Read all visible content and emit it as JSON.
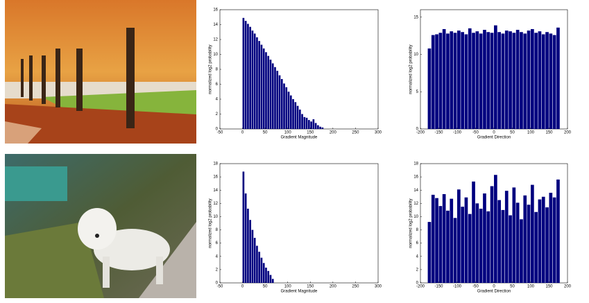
{
  "chart_data": [
    {
      "type": "histogram",
      "xlabel": "Gradient Magnitude",
      "ylabel": "normalized log2 probability",
      "color": "#00007f",
      "bins": [
        0,
        5,
        10,
        15,
        20,
        25,
        30,
        35,
        40,
        45,
        50,
        55,
        60,
        65,
        70,
        75,
        80,
        85,
        90,
        95,
        100,
        105,
        110,
        115,
        120,
        125,
        130,
        135,
        140,
        145,
        150,
        155,
        160,
        165,
        170,
        175,
        180
      ],
      "values": [
        14.9,
        14.5,
        14.1,
        13.7,
        13.2,
        12.8,
        12.3,
        11.8,
        11.3,
        10.8,
        10.3,
        9.8,
        9.3,
        8.8,
        8.3,
        7.8,
        7.2,
        6.7,
        6.1,
        5.6,
        5.0,
        4.5,
        4.0,
        3.6,
        3.1,
        2.6,
        2.0,
        1.6,
        1.5,
        1.2,
        1.0,
        1.3,
        0.8,
        0.5,
        0.3,
        0.2
      ],
      "xlim": [
        -50,
        300
      ],
      "xticks": [
        -50,
        0,
        50,
        100,
        150,
        200,
        250,
        300
      ],
      "ylim": [
        0,
        16
      ],
      "yticks": [
        0,
        2,
        4,
        6,
        8,
        10,
        12,
        14,
        16
      ]
    },
    {
      "type": "histogram",
      "xlabel": "Gradient Direction",
      "ylabel": "normalized log2 probability",
      "color": "#00007f",
      "bins": [
        -180,
        -170,
        -160,
        -150,
        -140,
        -130,
        -120,
        -110,
        -100,
        -90,
        -80,
        -70,
        -60,
        -50,
        -40,
        -30,
        -20,
        -10,
        0,
        10,
        20,
        30,
        40,
        50,
        60,
        70,
        80,
        90,
        100,
        110,
        120,
        130,
        140,
        150,
        160,
        170,
        180
      ],
      "values": [
        10.8,
        12.6,
        12.7,
        12.9,
        13.4,
        12.8,
        13.1,
        12.9,
        13.2,
        13.0,
        12.7,
        13.5,
        12.9,
        13.1,
        12.8,
        13.3,
        13.0,
        12.9,
        13.9,
        13.0,
        12.8,
        13.2,
        13.1,
        12.9,
        13.3,
        13.0,
        12.8,
        13.2,
        13.4,
        12.9,
        13.1,
        12.7,
        13.0,
        12.8,
        12.6,
        13.6
      ],
      "xlim": [
        -200,
        200
      ],
      "xticks": [
        -200,
        -150,
        -100,
        -50,
        0,
        50,
        100,
        150,
        200
      ],
      "ylim": [
        0,
        16
      ],
      "yticks": [
        0,
        5,
        10,
        15
      ]
    },
    {
      "type": "histogram",
      "xlabel": "Gradient Magnitude",
      "ylabel": "normalized log2 probability",
      "color": "#00007f",
      "bins": [
        0,
        5,
        10,
        15,
        20,
        25,
        30,
        35,
        40,
        45,
        50,
        55,
        60,
        65,
        70
      ],
      "values": [
        16.8,
        13.5,
        11.2,
        9.5,
        8.0,
        6.8,
        5.6,
        4.7,
        3.8,
        3.0,
        2.3,
        1.8,
        1.2,
        0.6
      ],
      "xlim": [
        -50,
        300
      ],
      "xticks": [
        -50,
        0,
        50,
        100,
        150,
        200,
        250,
        300
      ],
      "ylim": [
        0,
        18
      ],
      "yticks": [
        0,
        2,
        4,
        6,
        8,
        10,
        12,
        14,
        16,
        18
      ]
    },
    {
      "type": "histogram",
      "xlabel": "Gradient Direction",
      "ylabel": "normalized log2 probability",
      "color": "#00007f",
      "bins": [
        -180,
        -170,
        -160,
        -150,
        -140,
        -130,
        -120,
        -110,
        -100,
        -90,
        -80,
        -70,
        -60,
        -50,
        -40,
        -30,
        -20,
        -10,
        0,
        10,
        20,
        30,
        40,
        50,
        60,
        70,
        80,
        90,
        100,
        110,
        120,
        130,
        140,
        150,
        160,
        170,
        180
      ],
      "values": [
        9.2,
        13.3,
        12.8,
        11.6,
        13.4,
        10.9,
        12.7,
        9.8,
        14.1,
        11.5,
        12.9,
        10.4,
        15.3,
        12.0,
        11.2,
        13.5,
        10.8,
        14.6,
        16.3,
        12.5,
        11.0,
        13.9,
        10.2,
        14.4,
        12.1,
        9.6,
        13.2,
        11.8,
        14.8,
        10.7,
        12.6,
        13.0,
        11.4,
        13.6,
        12.9,
        15.6
      ],
      "xlim": [
        -200,
        200
      ],
      "xticks": [
        -200,
        -150,
        -100,
        -50,
        0,
        50,
        100,
        150,
        200
      ],
      "ylim": [
        0,
        18
      ],
      "yticks": [
        0,
        2,
        4,
        6,
        8,
        10,
        12,
        14,
        16,
        18
      ]
    }
  ]
}
